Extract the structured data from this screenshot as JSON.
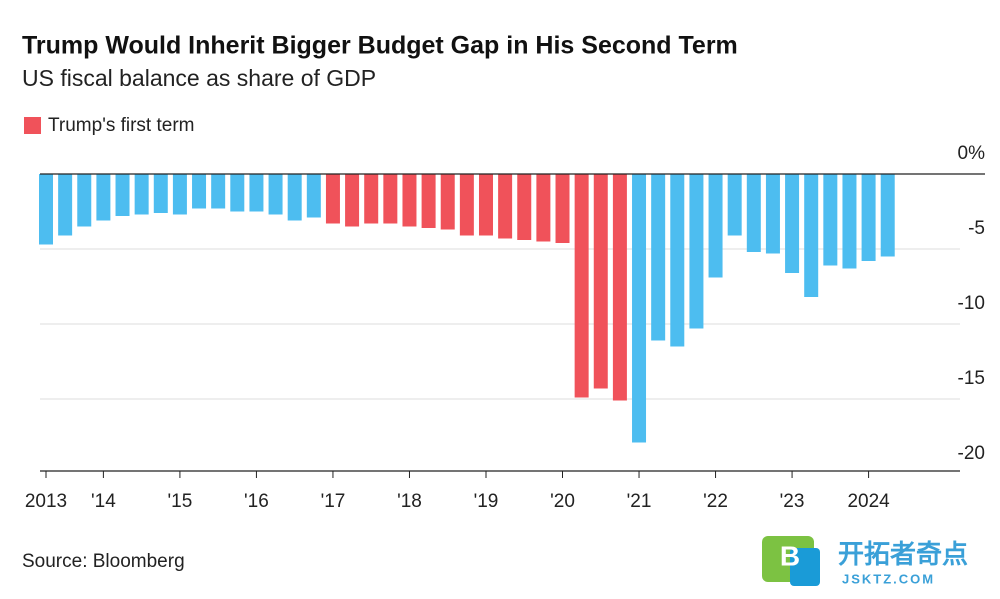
{
  "chart_data": {
    "type": "bar",
    "title": "Trump Would Inherit Bigger Budget Gap in His Second Term",
    "subtitle": "US fiscal balance as share of GDP",
    "legend": {
      "label": "Trump's first term",
      "color": "#f0525a"
    },
    "source": "Source: Bloomberg",
    "watermark": {
      "badge": "B",
      "name": "开拓者奇点",
      "url": "JSKTZ.COM"
    },
    "categories": [
      "2013",
      null,
      null,
      "'14",
      null,
      null,
      null,
      "'15",
      null,
      null,
      null,
      "'16",
      null,
      null,
      null,
      "'17",
      null,
      null,
      null,
      "'18",
      null,
      null,
      null,
      "'19",
      null,
      null,
      null,
      "'20",
      null,
      null,
      null,
      "'21",
      null,
      null,
      null,
      "'22",
      null,
      null,
      null,
      "'23",
      null,
      null,
      null,
      "2024",
      null
    ],
    "values": [
      -4.7,
      -4.1,
      -3.5,
      -3.1,
      -2.8,
      -2.7,
      -2.6,
      -2.7,
      -2.3,
      -2.3,
      -2.5,
      -2.5,
      -2.7,
      -3.1,
      -2.9,
      -3.3,
      -3.5,
      -3.3,
      -3.3,
      -3.5,
      -3.6,
      -3.7,
      -4.1,
      -4.1,
      -4.3,
      -4.4,
      -4.5,
      -4.6,
      -14.9,
      -14.3,
      -15.1,
      -17.9,
      -11.1,
      -11.5,
      -10.3,
      -6.9,
      -4.1,
      -5.2,
      -5.3,
      -6.6,
      -8.2,
      -6.1,
      -6.3,
      -5.8,
      -5.5
    ],
    "colors": [
      "#4dbdf0",
      "#4dbdf0",
      "#4dbdf0",
      "#4dbdf0",
      "#4dbdf0",
      "#4dbdf0",
      "#4dbdf0",
      "#4dbdf0",
      "#4dbdf0",
      "#4dbdf0",
      "#4dbdf0",
      "#4dbdf0",
      "#4dbdf0",
      "#4dbdf0",
      "#4dbdf0",
      "#f0525a",
      "#f0525a",
      "#f0525a",
      "#f0525a",
      "#f0525a",
      "#f0525a",
      "#f0525a",
      "#f0525a",
      "#f0525a",
      "#f0525a",
      "#f0525a",
      "#f0525a",
      "#f0525a",
      "#f0525a",
      "#f0525a",
      "#f0525a",
      "#4dbdf0",
      "#4dbdf0",
      "#4dbdf0",
      "#4dbdf0",
      "#4dbdf0",
      "#4dbdf0",
      "#4dbdf0",
      "#4dbdf0",
      "#4dbdf0",
      "#4dbdf0",
      "#4dbdf0",
      "#4dbdf0",
      "#4dbdf0",
      "#4dbdf0"
    ],
    "ylim": [
      -20,
      0
    ],
    "yticks": [
      {
        "value": 0,
        "label": "0%"
      },
      -5,
      -10,
      -15,
      -20
    ],
    "grid": true
  }
}
